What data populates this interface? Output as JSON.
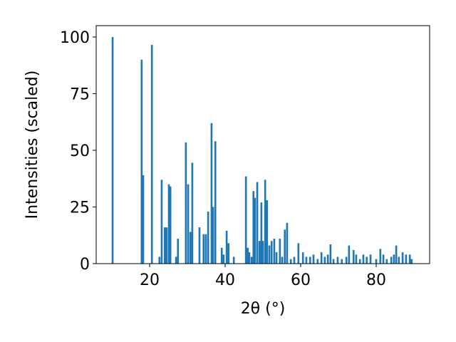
{
  "chart_data": {
    "type": "bar",
    "xlabel": "2θ (°)",
    "ylabel": "Intensities (scaled)",
    "color": "#1f77b4",
    "x": [
      10.2,
      17.9,
      18.3,
      20.6,
      22.6,
      23.2,
      24.0,
      24.5,
      25.1,
      25.5,
      27.0,
      27.5,
      29.6,
      30.2,
      30.8,
      31.3,
      33.2,
      34.3,
      34.9,
      35.5,
      36.4,
      36.8,
      37.4,
      39.1,
      39.6,
      40.4,
      40.9,
      42.3,
      45.5,
      46.0,
      46.4,
      47.0,
      47.5,
      47.9,
      48.5,
      49.1,
      49.6,
      50.0,
      50.6,
      51.1,
      51.7,
      52.3,
      53.0,
      53.6,
      54.5,
      55.1,
      55.8,
      56.4,
      57.4,
      58.3,
      59.4,
      60.6,
      61.5,
      62.5,
      63.4,
      64.5,
      65.5,
      66.4,
      67.2,
      67.9,
      68.7,
      69.8,
      70.9,
      72.1,
      72.8,
      74.0,
      74.7,
      75.7,
      76.6,
      77.5,
      78.5,
      80.0,
      81.1,
      81.9,
      82.8,
      84.0,
      84.7,
      85.3,
      86.0,
      87.0,
      87.9,
      88.9,
      89.4
    ],
    "values": [
      100,
      90,
      39,
      96.5,
      3,
      37,
      16,
      16,
      35,
      34,
      3,
      11,
      53.5,
      35,
      14,
      44.5,
      16,
      13,
      13,
      23,
      62,
      25,
      54,
      7,
      4,
      14.5,
      9,
      3,
      38.5,
      7,
      5,
      3,
      32,
      29,
      36,
      10,
      27,
      10,
      37,
      28,
      8,
      10,
      11,
      5,
      11,
      3,
      15,
      18,
      2,
      3,
      9,
      5,
      3,
      3,
      4,
      2,
      5,
      3,
      4,
      8.5,
      2,
      3,
      2,
      3,
      8,
      6,
      4,
      2,
      4,
      3,
      4,
      2,
      6.5,
      4,
      2,
      3,
      4,
      8,
      3,
      5,
      4,
      4,
      2
    ],
    "xlim": [
      5.85,
      94.15
    ],
    "ylim": [
      0,
      105
    ],
    "xticks": [
      20,
      40,
      60,
      80
    ],
    "yticks": [
      0,
      25,
      50,
      75,
      100
    ]
  }
}
